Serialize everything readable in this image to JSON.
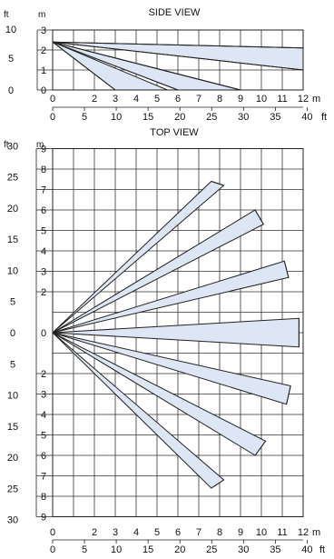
{
  "side_view": {
    "title": "SIDE VIEW",
    "y_left_unit": "ft",
    "y_right_unit": "m",
    "y_ft_ticks": [
      "10",
      "5",
      "0"
    ],
    "y_m_ticks": [
      "3",
      "2",
      "1",
      "0"
    ],
    "x_m_ticks": [
      "0",
      "2",
      "3",
      "4",
      "5",
      "6",
      "7",
      "8",
      "9",
      "10",
      "11",
      "12"
    ],
    "x_m_unit": "m",
    "x_ft_ticks": [
      "0",
      "5",
      "10",
      "15",
      "20",
      "25",
      "30",
      "35",
      "40"
    ],
    "x_ft_unit": "ft",
    "origin_height_m": 2.4,
    "beams_end_m": [
      {
        "x": 12,
        "y": 2.1
      },
      {
        "x": 12,
        "y": 1.0
      },
      {
        "x": 9,
        "y": 0.0
      },
      {
        "x": 6,
        "y": 0.0
      },
      {
        "x": 3,
        "y": 0.0
      }
    ],
    "zones": [
      {
        "top": {
          "x": 12,
          "y": 2.1
        },
        "bottom": {
          "x": 12,
          "y": 1.0
        }
      },
      {
        "top": {
          "x": 9,
          "y": 0.0
        },
        "bottom": {
          "x": 6,
          "y": 0.0
        }
      },
      {
        "top": {
          "x": 5.5,
          "y": 0.0
        },
        "bottom": {
          "x": 3,
          "y": 0.0
        }
      }
    ],
    "zone_fill": "#dde6f4"
  },
  "top_view": {
    "title": "TOP VIEW",
    "y_left_unit": "ft",
    "y_right_unit": "m",
    "y_ft_ticks_upper": [
      "30",
      "25",
      "20",
      "15",
      "10",
      "5"
    ],
    "y_ft_zero": "0",
    "y_ft_ticks_lower": [
      "5",
      "10",
      "15",
      "20",
      "25",
      "30"
    ],
    "y_m_ticks_upper": [
      "9",
      "8",
      "7",
      "6",
      "5",
      "4",
      "3",
      "2"
    ],
    "y_m_zero": "0",
    "y_m_ticks_lower": [
      "2",
      "3",
      "4",
      "5",
      "6",
      "7",
      "8",
      "9"
    ],
    "x_m_ticks": [
      "0",
      "2",
      "3",
      "4",
      "5",
      "6",
      "7",
      "8",
      "9",
      "10",
      "11",
      "12"
    ],
    "x_m_unit": "m",
    "x_ft_ticks": [
      "0",
      "5",
      "10",
      "15",
      "20",
      "25",
      "30",
      "35",
      "40"
    ],
    "x_ft_unit": "ft",
    "fans": [
      {
        "a": [
          7.6,
          7.4
        ],
        "b": [
          8.2,
          7.2
        ]
      },
      {
        "a": [
          9.7,
          6.0
        ],
        "b": [
          10.1,
          5.3
        ]
      },
      {
        "a": [
          11.1,
          3.5
        ],
        "b": [
          11.3,
          2.7
        ]
      },
      {
        "a": [
          11.8,
          0.7
        ],
        "b": [
          11.8,
          -0.7
        ]
      },
      {
        "a": [
          11.4,
          -2.6
        ],
        "b": [
          11.2,
          -3.5
        ]
      },
      {
        "a": [
          10.2,
          -5.3
        ],
        "b": [
          9.7,
          -6.0
        ]
      },
      {
        "a": [
          8.2,
          -7.2
        ],
        "b": [
          7.6,
          -7.6
        ]
      }
    ],
    "fan_fill": "#dde6f4"
  }
}
